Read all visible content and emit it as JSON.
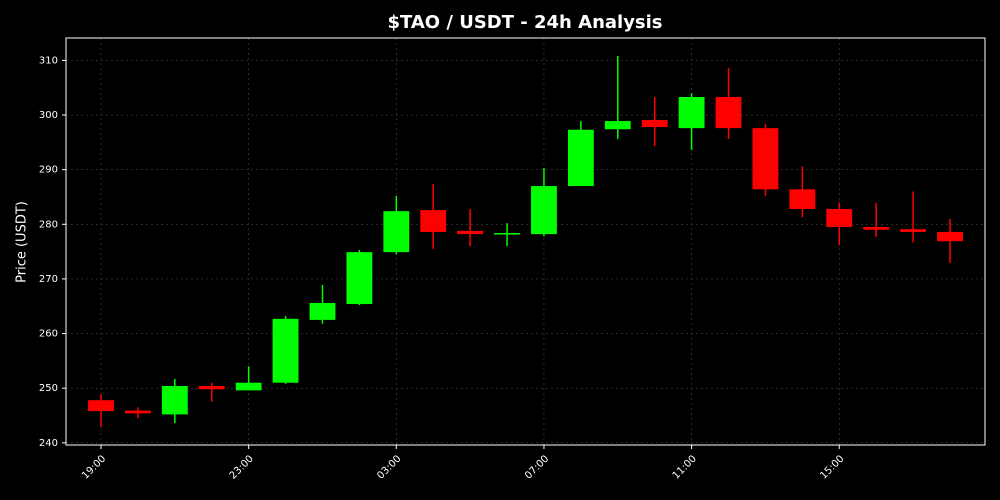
{
  "chart_data": {
    "type": "candlestick",
    "title": "$TAO / USDT - 24h Analysis",
    "y_label": "Price (USDT)",
    "categories": [
      "19:00",
      null,
      null,
      null,
      "23:00",
      null,
      null,
      null,
      "03:00",
      null,
      null,
      null,
      "07:00",
      null,
      null,
      null,
      "11:00",
      null,
      null,
      null,
      "15:00",
      null,
      null,
      null
    ],
    "open": [
      247.8,
      245.9,
      245.2,
      250.4,
      249.6,
      251.0,
      262.5,
      265.4,
      274.9,
      282.6,
      278.8,
      278.2,
      278.2,
      287.0,
      297.4,
      299.1,
      297.6,
      303.3,
      297.6,
      286.4,
      282.8,
      279.5,
      279.1,
      278.6
    ],
    "high": [
      248.9,
      246.5,
      251.7,
      251.0,
      254.0,
      263.2,
      268.9,
      275.3,
      285.2,
      287.4,
      282.8,
      280.2,
      290.3,
      298.9,
      310.8,
      303.3,
      304.0,
      308.6,
      298.4,
      290.6,
      284.0,
      283.9,
      286.0,
      281.0
    ],
    "low": [
      242.9,
      244.5,
      243.6,
      247.5,
      249.6,
      250.8,
      261.8,
      265.2,
      274.5,
      275.5,
      276.0,
      276.0,
      277.8,
      287.0,
      295.6,
      294.3,
      293.6,
      295.6,
      285.2,
      281.3,
      276.2,
      277.7,
      276.7,
      272.9
    ],
    "close": [
      245.8,
      245.4,
      250.4,
      249.8,
      251.0,
      262.7,
      265.6,
      274.9,
      282.4,
      278.6,
      278.2,
      278.4,
      287.0,
      297.3,
      298.9,
      297.8,
      303.3,
      297.6,
      286.4,
      282.8,
      279.5,
      279.0,
      278.6,
      276.9
    ],
    "up_color": "#00ff00",
    "down_color": "#ff0000",
    "ylim": [
      239.6,
      314.1
    ],
    "yticks": [
      240,
      250,
      260,
      270,
      280,
      290,
      300,
      310
    ],
    "grid": true
  }
}
